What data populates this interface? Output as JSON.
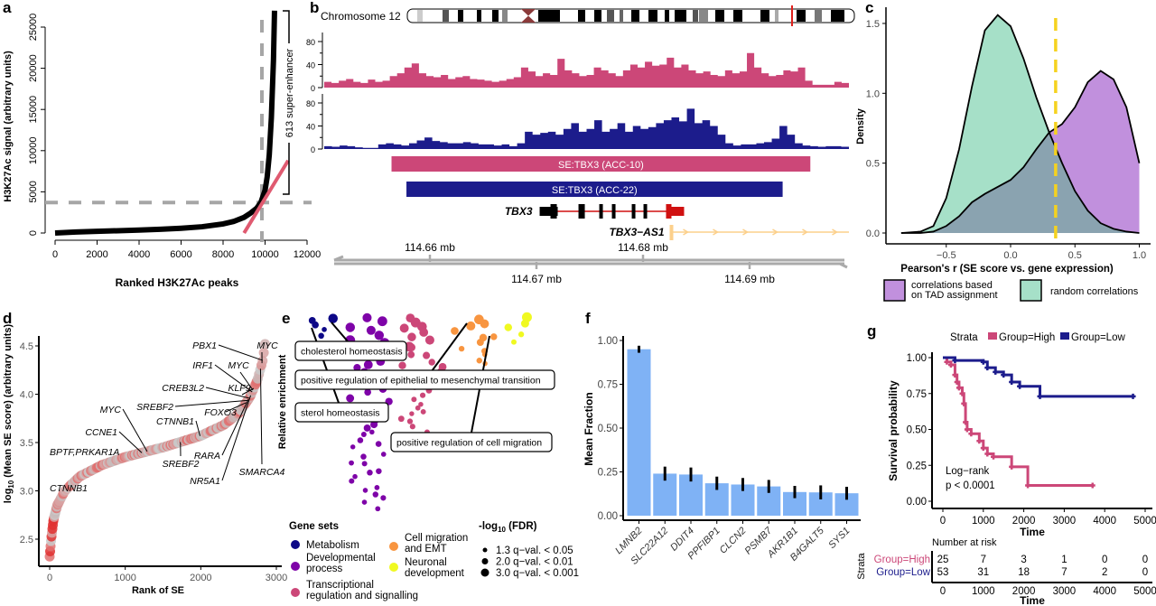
{
  "panel_labels": [
    "a",
    "b",
    "c",
    "d",
    "e",
    "f",
    "g"
  ],
  "chart_data": [
    {
      "panel": "a",
      "type": "line",
      "xlabel": "Ranked H3K27Ac peaks",
      "ylabel": "H3K27Ac signal (arbitrary units)",
      "xlim": [
        0,
        12000
      ],
      "ylim": [
        0,
        25000
      ],
      "xticks": [
        "0",
        "2000",
        "4000",
        "6000",
        "8000",
        "10000",
        "12000"
      ],
      "yticks": [
        "0",
        "5000",
        "10000",
        "15000",
        "20000",
        "25000"
      ],
      "series": [
        {
          "x": [
            0,
            1000,
            2000,
            3000,
            4000,
            5000,
            6000,
            7000,
            8000,
            8500,
            9000,
            9300,
            9600,
            9800,
            10000,
            10100,
            10200,
            10300,
            10400,
            10450
          ],
          "y": [
            0,
            120,
            200,
            280,
            360,
            450,
            580,
            760,
            1100,
            1400,
            1900,
            2400,
            3000,
            3700,
            5200,
            6800,
            9500,
            14000,
            21000,
            27000
          ]
        }
      ],
      "cutoff": {
        "rank": 9850,
        "signal": 3700
      },
      "tangent": {
        "x": [
          9000,
          11100
        ],
        "y": [
          0,
          8800
        ]
      },
      "annotation": "613 super-enhancer",
      "colors": {
        "curve": "#000000",
        "tangent": "#e05a70",
        "cutoff": "#a6a6a6"
      }
    },
    {
      "panel": "b",
      "type": "area",
      "chromosome_label": "Chromosome 12",
      "yticks": [
        "0",
        "40",
        "80"
      ],
      "xrange_mb": [
        114.6499,
        114.6993
      ],
      "tracks": [
        {
          "color": "#cc4778",
          "values": [
            10,
            8,
            12,
            15,
            10,
            8,
            14,
            10,
            12,
            20,
            25,
            35,
            42,
            25,
            20,
            18,
            22,
            15,
            18,
            20,
            15,
            14,
            12,
            10,
            12,
            15,
            18,
            35,
            28,
            20,
            25,
            22,
            50,
            30,
            25,
            20,
            22,
            35,
            30,
            25,
            20,
            30,
            40,
            35,
            45,
            38,
            40,
            52,
            35,
            40,
            30,
            25,
            28,
            22,
            20,
            30,
            25,
            28,
            60,
            35,
            25,
            20,
            22,
            30,
            28,
            35,
            12,
            5,
            5,
            5,
            10,
            8
          ]
        },
        {
          "color": "#1c1c8c",
          "values": [
            5,
            4,
            6,
            5,
            3,
            2,
            2,
            8,
            10,
            8,
            6,
            10,
            15,
            20,
            14,
            12,
            10,
            10,
            12,
            10,
            8,
            8,
            6,
            8,
            5,
            10,
            30,
            25,
            28,
            30,
            25,
            35,
            45,
            30,
            35,
            50,
            30,
            35,
            45,
            30,
            40,
            35,
            38,
            45,
            50,
            55,
            48,
            70,
            45,
            50,
            40,
            25,
            10,
            6,
            8,
            8,
            10,
            12,
            18,
            40,
            25,
            10,
            6,
            5,
            4,
            5,
            5,
            4
          ]
        }
      ],
      "regions": [
        {
          "label": "SE:TBX3 (ACC-10)",
          "start": 114.6564,
          "end": 114.6957,
          "color": "#cc4778"
        },
        {
          "label": "SE:TBX3 (ACC-22)",
          "start": 114.6578,
          "end": 114.6931,
          "color": "#1c1c8c"
        }
      ],
      "genes": [
        {
          "name": "TBX3",
          "start": 114.6703,
          "end": 114.6836
        },
        {
          "name": "TBX3−AS1",
          "start": 114.6825,
          "end": 114.6993
        }
      ],
      "xticks": [
        {
          "value": 114.66,
          "label": "114.66 mb"
        },
        {
          "value": 114.67,
          "label": "114.67 mb"
        },
        {
          "value": 114.68,
          "label": "114.68 mb"
        },
        {
          "value": 114.69,
          "label": "114.69 mb"
        }
      ]
    },
    {
      "panel": "c",
      "type": "area",
      "xlabel": "Pearson's r (SE score vs. gene expression)",
      "ylabel": "Density",
      "xlim": [
        -0.9,
        1.05
      ],
      "ylim": [
        0,
        1.6
      ],
      "xticks": [
        "−0.5",
        "0.0",
        "0.5",
        "1.0"
      ],
      "yticks": [
        "0.0",
        "0.5",
        "1.0",
        "1.5"
      ],
      "x": [
        -0.85,
        -0.7,
        -0.6,
        -0.5,
        -0.4,
        -0.3,
        -0.2,
        -0.1,
        0,
        0.1,
        0.2,
        0.3,
        0.4,
        0.5,
        0.6,
        0.7,
        0.8,
        0.9,
        1.0
      ],
      "series": [
        {
          "name": "correlations based on TAD assignment",
          "color": "#c190dd",
          "values": [
            0,
            0,
            0.01,
            0.05,
            0.12,
            0.22,
            0.28,
            0.33,
            0.38,
            0.47,
            0.6,
            0.72,
            0.78,
            0.9,
            1.08,
            1.16,
            1.1,
            0.9,
            0.5
          ]
        },
        {
          "name": "random correlations",
          "color": "#a6e0c8",
          "values": [
            0,
            0.01,
            0.05,
            0.25,
            0.6,
            1.05,
            1.45,
            1.56,
            1.48,
            1.25,
            0.97,
            0.72,
            0.5,
            0.3,
            0.16,
            0.07,
            0.03,
            0.01,
            0
          ]
        }
      ],
      "threshold": 0.35,
      "threshold_color": "#f5d21f",
      "overlap_color": "#8aa3b0",
      "legend_lines": [
        [
          "correlations based",
          "on TAD assignment"
        ],
        [
          "random correlations"
        ]
      ]
    },
    {
      "panel": "d",
      "type": "scatter",
      "xlabel": "Rank of SE",
      "ylabel_prefix": "log",
      "ylabel_sub": "10",
      "ylabel_suffix": " (Mean SE score) (arbitrary units)",
      "xlim": [
        0,
        3000
      ],
      "ylim": [
        2.3,
        4.6
      ],
      "xticks": [
        "0",
        "1000",
        "2000",
        "3000"
      ],
      "yticks": [
        "2.5",
        "3.0",
        "3.5",
        "4.0",
        "4.5"
      ],
      "curve": {
        "rank": [
          0,
          20,
          50,
          100,
          200,
          400,
          700,
          1000,
          1500,
          2000,
          2300,
          2500,
          2650,
          2750,
          2820,
          2850
        ],
        "value": [
          2.32,
          2.5,
          2.7,
          2.85,
          3.0,
          3.15,
          3.27,
          3.35,
          3.45,
          3.57,
          3.68,
          3.8,
          3.97,
          4.15,
          4.35,
          4.52
        ]
      },
      "labels": [
        {
          "text": "PBX1",
          "rank": 2820
        },
        {
          "text": "MYC",
          "rank": 2810
        },
        {
          "text": "IRF1",
          "rank": 2680
        },
        {
          "text": "MYC",
          "rank": 2690
        },
        {
          "text": "KLF9",
          "rank": 2700
        },
        {
          "text": "CREB3L2",
          "rank": 2640
        },
        {
          "text": "SREBF2",
          "rank": 2620
        },
        {
          "text": "FOXO3",
          "rank": 2600
        },
        {
          "text": "MYC",
          "rank": 1290
        },
        {
          "text": "CTNNB1",
          "rank": 1990
        },
        {
          "text": "CCNE1",
          "rank": 1220
        },
        {
          "text": "BPTF,PRKAR1A",
          "rank": null
        },
        {
          "text": "SREBF2",
          "rank": 1730
        },
        {
          "text": "RARA",
          "rank": 2630
        },
        {
          "text": "SMARCA4",
          "rank": 2790
        },
        {
          "text": "NR5A1",
          "rank": 2660
        },
        {
          "text": "CTNNB1",
          "rank": null
        }
      ]
    },
    {
      "panel": "e",
      "type": "scatter",
      "ylabel": "Relative enrichment",
      "categories": [
        {
          "name": "Metabolism",
          "color": "#0d0887",
          "count": 5
        },
        {
          "name": "Developmental process",
          "color": "#7e03a8",
          "count": 46
        },
        {
          "name": "Transcriptional regulation and signalling",
          "color": "#cc4778",
          "count": 30
        },
        {
          "name": "Cell migration and EMT",
          "color": "#f89540",
          "count": 12
        },
        {
          "name": "Neuronal development",
          "color": "#f0f921",
          "count": 5
        }
      ],
      "annotations": [
        "cholesterol homeostasis",
        "positive regulation of epithelial to mesenchymal transition",
        "sterol homeostasis",
        "positive regulation of cell migration"
      ],
      "legend_title": "Gene sets",
      "legend_lines": [
        [
          "Metabolism"
        ],
        [
          "Developmental",
          "process"
        ],
        [
          "Transcriptional",
          "regulation and signalling"
        ],
        [
          "Cell migration",
          "and EMT"
        ],
        [
          "Neuronal",
          "development"
        ]
      ],
      "size_title_prefix": "-log",
      "size_title_sub": "10",
      "size_title_suffix": " (FDR)",
      "size_legend": [
        "1.3 q−val. < 0.05",
        "2.0 q−val. < 0.01",
        "3.0 q−val. < 0.001"
      ]
    },
    {
      "panel": "f",
      "type": "bar",
      "ylabel": "Mean Fraction",
      "ylim": [
        0,
        1
      ],
      "yticks": [
        "0.00",
        "0.25",
        "0.50",
        "0.75",
        "1.00"
      ],
      "categories": [
        "LMNB2",
        "SLC22A12",
        "DDIT4",
        "PPFIBP1",
        "CLCN2",
        "PSMB7",
        "AKR1B1",
        "B4GALT5",
        "SYS1"
      ],
      "values": [
        0.95,
        0.24,
        0.235,
        0.185,
        0.178,
        0.167,
        0.135,
        0.133,
        0.128
      ],
      "errors": [
        0.02,
        0.04,
        0.04,
        0.038,
        0.037,
        0.037,
        0.035,
        0.04,
        0.037
      ],
      "color": "#7fb2f5"
    },
    {
      "panel": "g",
      "type": "line",
      "xlabel": "Time",
      "ylabel": "Survival probability",
      "xlim": [
        0,
        5000
      ],
      "ylim": [
        0,
        1
      ],
      "xticks": [
        "0",
        "1000",
        "2000",
        "3000",
        "4000",
        "5000"
      ],
      "yticks": [
        "0.00",
        "0.25",
        "0.50",
        "0.75",
        "1.00"
      ],
      "legend_title": "Strata",
      "series": [
        {
          "name": "Group=High",
          "color": "#cc4778",
          "time": [
            0,
            100,
            200,
            300,
            350,
            400,
            480,
            520,
            560,
            600,
            700,
            900,
            1000,
            1100,
            1250,
            1700,
            2100,
            3700
          ],
          "survival": [
            1.0,
            0.97,
            0.95,
            0.88,
            0.83,
            0.79,
            0.75,
            0.68,
            0.55,
            0.5,
            0.47,
            0.42,
            0.37,
            0.33,
            0.31,
            0.24,
            0.11,
            0.11
          ],
          "at_risk": [
            "25",
            "7",
            "3",
            "1",
            "0",
            "0"
          ]
        },
        {
          "name": "Group=Low",
          "color": "#1c1c8c",
          "time": [
            0,
            300,
            1000,
            1100,
            1300,
            1500,
            1700,
            1900,
            2400,
            4700
          ],
          "survival": [
            1.0,
            0.98,
            0.97,
            0.93,
            0.9,
            0.88,
            0.83,
            0.8,
            0.73,
            0.73
          ],
          "at_risk": [
            "53",
            "31",
            "18",
            "7",
            "2",
            "0"
          ]
        }
      ],
      "test_label": "Log−rank",
      "p_value": "p < 0.0001",
      "risk_title": "Number at risk",
      "risk_ylabel": "Strata"
    }
  ]
}
